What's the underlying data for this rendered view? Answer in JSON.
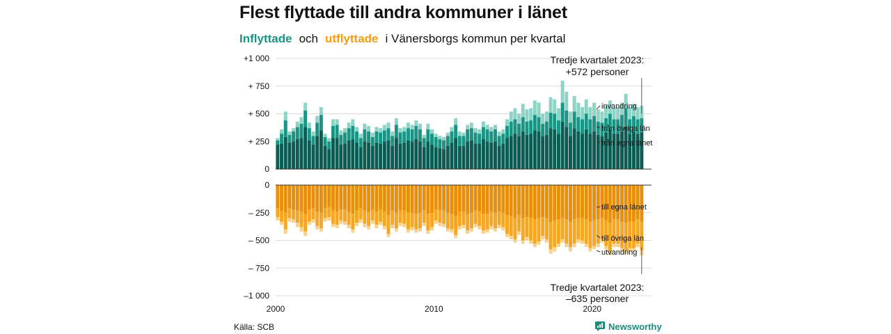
{
  "title": "Flest flyttade till andra kommuner i länet",
  "subtitle": {
    "part1": "Inflyttade",
    "part2": "och",
    "part3": "utflyttade",
    "part4": "i Vänersborgs  kommun  per  kvartal"
  },
  "source": "Källa: SCB",
  "brand": "Newsworthy",
  "colors": {
    "in_dark": "#0b5c52",
    "in_mid": "#1a9484",
    "in_light": "#8fd3c7",
    "out_dark": "#e8900c",
    "out_mid": "#f5a623",
    "out_light": "#f9d18a"
  },
  "chart_data": {
    "type": "bar",
    "stacked": true,
    "xlim": [
      2000,
      2023.75
    ],
    "x_ticks": [
      "2000",
      "2010",
      "2020"
    ],
    "y_ticks_top": [
      "+1 000",
      "+ 750",
      "+ 500",
      "+ 250",
      "0"
    ],
    "y_ticks_bottom": [
      "0",
      "– 250",
      "– 500",
      "– 750",
      "–1 000"
    ],
    "ylim_top": [
      0,
      1000
    ],
    "ylim_bottom": [
      -1000,
      0
    ],
    "grid": true,
    "series_labels_in": [
      "invandring",
      "från övriga län",
      "från egna länet"
    ],
    "series_labels_out": [
      "till egna länet",
      "till övriga län",
      "utvandring"
    ],
    "annotation_top": [
      "Tredje kvartalet 2023:",
      "+572 personer"
    ],
    "annotation_bottom": [
      "Tredje kvartalet 2023:",
      "–635 personer"
    ],
    "start_quarter": "2000 Q1",
    "inflow": {
      "totals": [
        280,
        360,
        520,
        340,
        370,
        430,
        470,
        600,
        420,
        340,
        480,
        560,
        320,
        280,
        450,
        450,
        350,
        370,
        420,
        450,
        380,
        320,
        410,
        390,
        330,
        380,
        370,
        400,
        420,
        340,
        460,
        370,
        380,
        420,
        400,
        440,
        410,
        310,
        410,
        360,
        320,
        300,
        290,
        330,
        380,
        460,
        340,
        330,
        400,
        420,
        370,
        360,
        430,
        400,
        380,
        400,
        340,
        360,
        450,
        520,
        550,
        500,
        590,
        540,
        550,
        620,
        600,
        500,
        520,
        650,
        630,
        550,
        800,
        700,
        520,
        660,
        600,
        560,
        630,
        560,
        600,
        540,
        520,
        570,
        620,
        550,
        560,
        600,
        680,
        560,
        590,
        560,
        572
      ],
      "own_county": [
        220,
        230,
        290,
        240,
        250,
        270,
        280,
        380,
        260,
        220,
        300,
        350,
        210,
        180,
        280,
        280,
        220,
        230,
        260,
        270,
        240,
        200,
        250,
        240,
        210,
        240,
        230,
        250,
        260,
        210,
        280,
        230,
        240,
        260,
        250,
        270,
        250,
        200,
        250,
        220,
        200,
        190,
        180,
        210,
        240,
        280,
        210,
        210,
        250,
        260,
        230,
        230,
        270,
        250,
        240,
        250,
        210,
        230,
        280,
        300,
        320,
        300,
        340,
        310,
        320,
        350,
        340,
        300,
        310,
        370,
        360,
        320,
        430,
        380,
        300,
        370,
        340,
        320,
        360,
        320,
        340,
        310,
        300,
        330,
        350,
        320,
        320,
        340,
        380,
        320,
        340,
        320,
        330
      ],
      "other_counties": [
        40,
        90,
        150,
        70,
        90,
        110,
        130,
        150,
        110,
        80,
        120,
        140,
        80,
        70,
        110,
        120,
        90,
        100,
        110,
        120,
        100,
        80,
        110,
        100,
        80,
        100,
        100,
        100,
        110,
        90,
        120,
        100,
        100,
        110,
        110,
        120,
        110,
        80,
        110,
        100,
        90,
        80,
        80,
        90,
        100,
        120,
        90,
        90,
        110,
        110,
        100,
        90,
        110,
        110,
        100,
        110,
        90,
        90,
        110,
        130,
        130,
        110,
        130,
        120,
        120,
        140,
        130,
        110,
        120,
        140,
        140,
        120,
        170,
        150,
        120,
        150,
        130,
        130,
        140,
        130,
        140,
        120,
        120,
        130,
        150,
        130,
        130,
        150,
        170,
        130,
        140,
        130,
        130
      ]
    },
    "outflow": {
      "totals": [
        320,
        360,
        440,
        330,
        340,
        380,
        420,
        460,
        360,
        340,
        400,
        420,
        330,
        320,
        380,
        390,
        350,
        360,
        390,
        430,
        370,
        340,
        380,
        400,
        350,
        390,
        360,
        400,
        470,
        390,
        420,
        370,
        380,
        430,
        410,
        430,
        420,
        370,
        440,
        410,
        350,
        370,
        380,
        420,
        430,
        480,
        400,
        390,
        440,
        420,
        380,
        400,
        440,
        430,
        400,
        420,
        390,
        410,
        470,
        490,
        520,
        450,
        530,
        500,
        530,
        560,
        540,
        490,
        520,
        620,
        600,
        560,
        520,
        560,
        600,
        560,
        520,
        530,
        560,
        600,
        580,
        560,
        520,
        580,
        630,
        560,
        560,
        600,
        620,
        600,
        600,
        560,
        635
      ],
      "own_county": [
        210,
        230,
        250,
        210,
        220,
        230,
        240,
        260,
        220,
        210,
        240,
        250,
        210,
        200,
        230,
        240,
        220,
        220,
        240,
        260,
        230,
        210,
        230,
        240,
        220,
        240,
        220,
        240,
        270,
        230,
        250,
        230,
        230,
        250,
        250,
        260,
        250,
        230,
        260,
        250,
        220,
        230,
        230,
        250,
        260,
        280,
        240,
        240,
        260,
        250,
        230,
        240,
        260,
        260,
        240,
        250,
        240,
        250,
        270,
        280,
        300,
        270,
        300,
        290,
        300,
        310,
        300,
        290,
        300,
        330,
        320,
        310,
        300,
        310,
        330,
        310,
        300,
        300,
        310,
        330,
        320,
        310,
        300,
        320,
        340,
        310,
        310,
        330,
        340,
        330,
        330,
        310,
        330
      ],
      "other_counties": [
        80,
        100,
        150,
        90,
        90,
        110,
        140,
        160,
        110,
        100,
        130,
        140,
        90,
        90,
        120,
        120,
        100,
        110,
        120,
        140,
        110,
        100,
        120,
        130,
        100,
        120,
        110,
        130,
        170,
        130,
        140,
        110,
        120,
        150,
        130,
        140,
        140,
        110,
        150,
        130,
        100,
        110,
        120,
        140,
        140,
        170,
        130,
        120,
        150,
        140,
        120,
        130,
        150,
        140,
        130,
        140,
        120,
        130,
        170,
        180,
        190,
        150,
        200,
        180,
        200,
        220,
        210,
        170,
        190,
        250,
        240,
        220,
        190,
        220,
        230,
        220,
        190,
        200,
        220,
        240,
        230,
        220,
        190,
        230,
        260,
        220,
        220,
        240,
        250,
        240,
        240,
        220,
        260
      ]
    }
  }
}
